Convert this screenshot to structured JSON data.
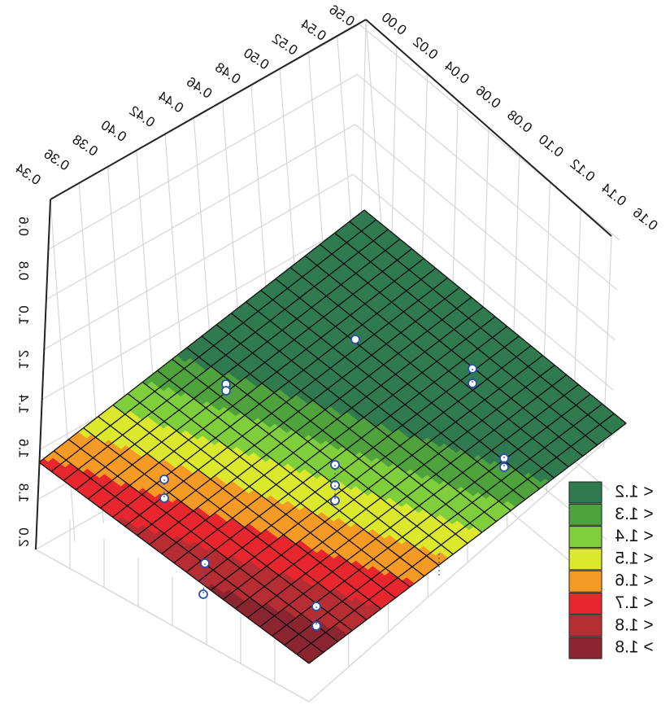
{
  "chart_data": {
    "type": "surface3d",
    "title": "",
    "mirrored": true,
    "x_axis": {
      "ticks": [
        "0.34",
        "0.36",
        "0.38",
        "0.40",
        "0.42",
        "0.44",
        "0.46",
        "0.48",
        "0.50",
        "0.52",
        "0.54",
        "0.56"
      ],
      "range": [
        0.34,
        0.56
      ]
    },
    "y_axis": {
      "ticks": [
        "0.00",
        "0.02",
        "0.04",
        "0.06",
        "0.08",
        "0.10",
        "0.12",
        "0.14",
        "0.16"
      ],
      "range": [
        0.0,
        0.16
      ]
    },
    "z_axis": {
      "ticks": [
        "2.0",
        "1.8",
        "1.6",
        "1.4",
        "1.2",
        "1.0",
        "0.8",
        "0.6"
      ],
      "range": [
        0.6,
        2.0
      ]
    },
    "surface_levels": [
      1.2,
      1.3,
      1.4,
      1.5,
      1.6,
      1.7,
      1.8
    ],
    "legend": {
      "position": "bottom-right",
      "items": [
        {
          "label": "< 1.2",
          "color": "#2f7a4f"
        },
        {
          "label": "< 1.3",
          "color": "#4fa33c"
        },
        {
          "label": "< 1.4",
          "color": "#7fcf3c"
        },
        {
          "label": "< 1.5",
          "color": "#dbe82c"
        },
        {
          "label": "< 1.6",
          "color": "#f59a24"
        },
        {
          "label": "< 1.7",
          "color": "#e8262e"
        },
        {
          "label": "< 1.8",
          "color": "#b62d33"
        },
        {
          "label": "> 1.8",
          "color": "#8b2530"
        }
      ]
    },
    "observed_points": [
      {
        "x": 0.44,
        "y": 0.09,
        "z": 1.35
      },
      {
        "x": 0.4,
        "y": 0.02,
        "z": 1.55
      },
      {
        "x": 0.39,
        "y": 0.03,
        "z": 1.55
      },
      {
        "x": 0.42,
        "y": 0.12,
        "z": 1.38
      },
      {
        "x": 0.43,
        "y": 0.13,
        "z": 1.42
      },
      {
        "x": 0.47,
        "y": 0.14,
        "z": 1.48
      },
      {
        "x": 0.48,
        "y": 0.15,
        "z": 1.52
      },
      {
        "x": 0.48,
        "y": 0.06,
        "z": 1.62
      },
      {
        "x": 0.47,
        "y": 0.07,
        "z": 1.6
      },
      {
        "x": 0.46,
        "y": 0.07,
        "z": 1.58
      },
      {
        "x": 0.52,
        "y": 0.01,
        "z": 1.78
      },
      {
        "x": 0.52,
        "y": 0.02,
        "z": 1.75
      },
      {
        "x": 0.55,
        "y": 0.04,
        "z": 1.82
      },
      {
        "x": 0.56,
        "y": 0.07,
        "z": 1.85
      },
      {
        "x": 0.56,
        "y": 0.08,
        "z": 1.8
      },
      {
        "x": 0.55,
        "y": 0.16,
        "z": 1.6
      }
    ]
  }
}
